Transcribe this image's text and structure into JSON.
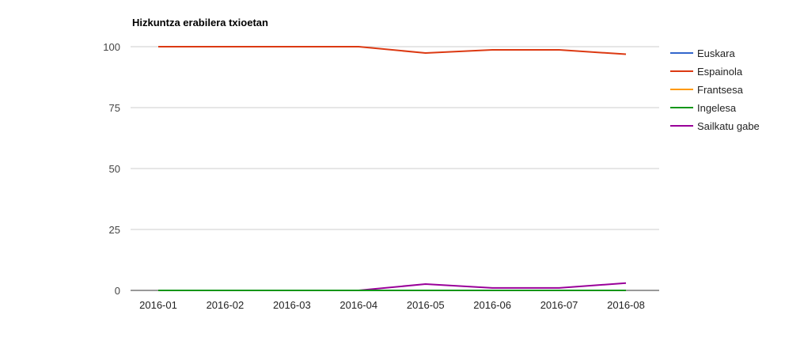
{
  "chart_data": {
    "type": "line",
    "title": "Hizkuntza erabilera txioetan",
    "xlabel": "",
    "ylabel": "",
    "categories": [
      "2016-01",
      "2016-02",
      "2016-03",
      "2016-04",
      "2016-05",
      "2016-06",
      "2016-07",
      "2016-08"
    ],
    "ylim": [
      0,
      100
    ],
    "yticks": [
      0,
      25,
      50,
      75,
      100
    ],
    "grid": true,
    "legend_position": "right",
    "series": [
      {
        "name": "Euskara",
        "color": "#3366cc",
        "values": [
          0,
          0,
          0,
          0,
          0,
          0,
          0,
          0
        ]
      },
      {
        "name": "Espainola",
        "color": "#dc3912",
        "values": [
          100,
          100,
          100,
          100,
          97.4,
          98.7,
          98.7,
          96.9
        ]
      },
      {
        "name": "Frantsesa",
        "color": "#ff9900",
        "values": [
          0,
          0,
          0,
          0,
          0,
          0,
          0,
          0
        ]
      },
      {
        "name": "Ingelesa",
        "color": "#109618",
        "values": [
          0,
          0,
          0,
          0,
          0,
          0,
          0,
          0
        ]
      },
      {
        "name": "Sailkatu gabe",
        "color": "#990099",
        "values": [
          0,
          0,
          0,
          0,
          2.6,
          1.0,
          1.0,
          3.0
        ]
      }
    ]
  }
}
